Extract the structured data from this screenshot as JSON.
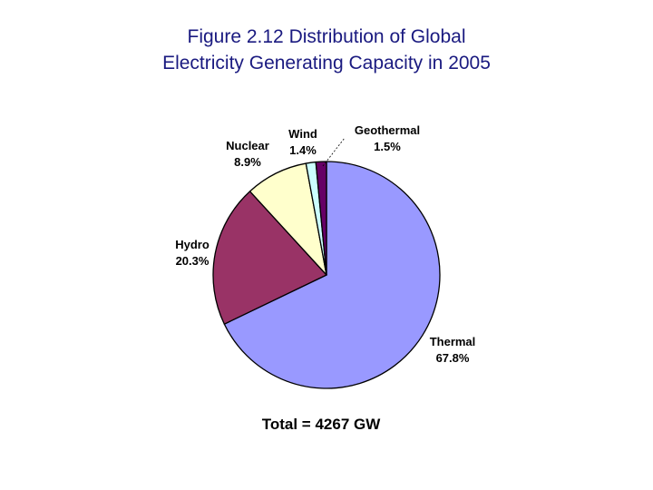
{
  "chart_data": {
    "type": "pie",
    "title_line1": "Figure 2.12 Distribution of Global",
    "title_line2": "Electricity Generating Capacity in 2005",
    "total_label": "Total = 4267 GW",
    "slices": [
      {
        "name": "Thermal",
        "value": 67.8,
        "label": "67.8%",
        "color": "#9999ff"
      },
      {
        "name": "Hydro",
        "value": 20.3,
        "label": "20.3%",
        "color": "#993366"
      },
      {
        "name": "Nuclear",
        "value": 8.9,
        "label": "8.9%",
        "color": "#ffffcc"
      },
      {
        "name": "Wind",
        "value": 1.4,
        "label": "1.4%",
        "color": "#ccffff"
      },
      {
        "name": "Geothermal",
        "value": 1.5,
        "label": "1.5%",
        "color": "#660066"
      }
    ]
  }
}
